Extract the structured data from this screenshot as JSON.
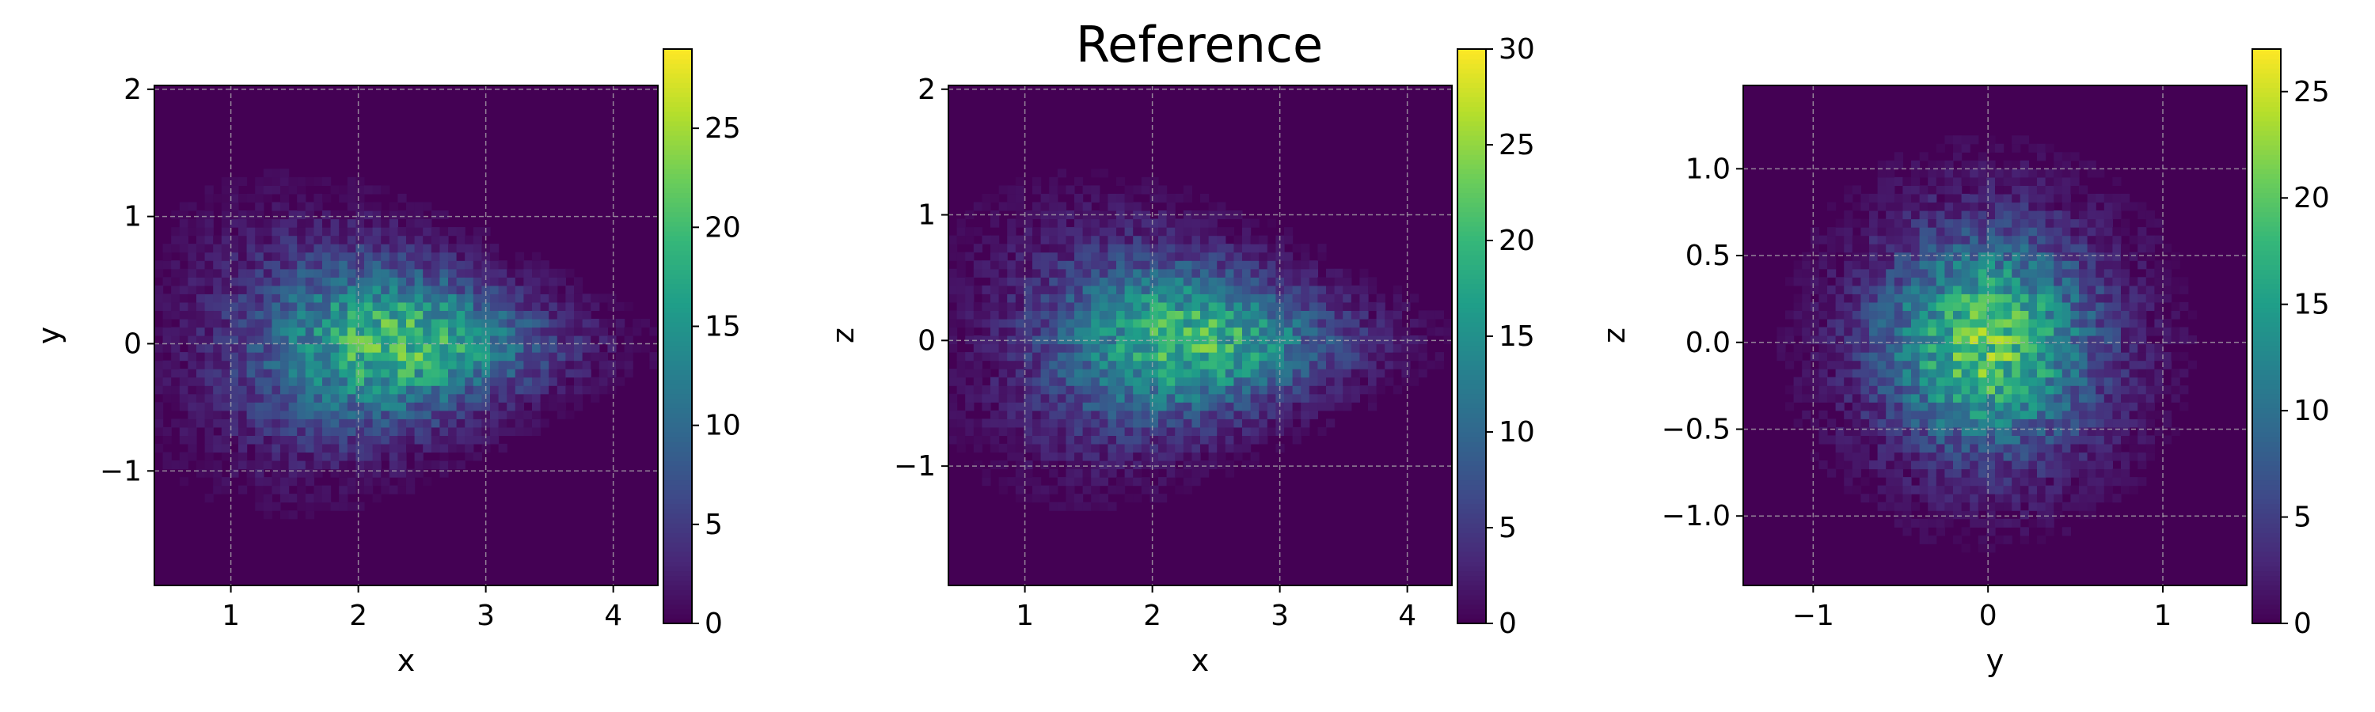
{
  "figure_title": "Reference",
  "colormap": "viridis",
  "chart_data": [
    {
      "type": "heatmap",
      "title": "",
      "xlabel": "x",
      "ylabel": "y",
      "xlim": [
        0.4,
        4.35
      ],
      "ylim": [
        -1.9,
        2.03
      ],
      "xticks": [
        1,
        2,
        3,
        4
      ],
      "xtick_labels": [
        "1",
        "2",
        "3",
        "4"
      ],
      "yticks": [
        -1,
        0,
        1,
        2
      ],
      "ytick_labels": [
        "−1",
        "0",
        "1",
        "2"
      ],
      "grid": true,
      "bins": [
        60,
        60
      ],
      "density": {
        "center": [
          2.3,
          0.0
        ],
        "spread": [
          0.75,
          0.42
        ],
        "taper": 0.28
      },
      "colorbar": {
        "min": 0,
        "max": 29,
        "ticks": [
          0,
          5,
          10,
          15,
          20,
          25
        ],
        "tick_labels": [
          "0",
          "5",
          "10",
          "15",
          "20",
          "25"
        ]
      }
    },
    {
      "type": "heatmap",
      "title": "",
      "xlabel": "x",
      "ylabel": "z",
      "xlim": [
        0.4,
        4.35
      ],
      "ylim": [
        -1.95,
        2.03
      ],
      "xticks": [
        1,
        2,
        3,
        4
      ],
      "xtick_labels": [
        "1",
        "2",
        "3",
        "4"
      ],
      "yticks": [
        -1,
        0,
        1,
        2
      ],
      "ytick_labels": [
        "−1",
        "0",
        "1",
        "2"
      ],
      "grid": true,
      "bins": [
        60,
        60
      ],
      "density": {
        "center": [
          2.3,
          0.0
        ],
        "spread": [
          0.75,
          0.42
        ],
        "taper": 0.28
      },
      "colorbar": {
        "min": 0,
        "max": 30,
        "ticks": [
          0,
          5,
          10,
          15,
          20,
          25,
          30
        ],
        "tick_labels": [
          "0",
          "5",
          "10",
          "15",
          "20",
          "25",
          "30"
        ]
      }
    },
    {
      "type": "heatmap",
      "title": "",
      "xlabel": "y",
      "ylabel": "z",
      "xlim": [
        -1.4,
        1.48
      ],
      "ylim": [
        -1.4,
        1.48
      ],
      "xticks": [
        -1,
        0,
        1
      ],
      "xtick_labels": [
        "−1",
        "0",
        "1"
      ],
      "yticks": [
        -1.0,
        -0.5,
        0.0,
        0.5,
        1.0
      ],
      "ytick_labels": [
        "−1.0",
        "−0.5",
        "0.0",
        "0.5",
        "1.0"
      ],
      "grid": true,
      "bins": [
        60,
        60
      ],
      "density": {
        "center": [
          0.0,
          0.0
        ],
        "spread": [
          0.42,
          0.42
        ],
        "taper": 0.0
      },
      "colorbar": {
        "min": 0,
        "max": 27,
        "ticks": [
          0,
          5,
          10,
          15,
          20,
          25
        ],
        "tick_labels": [
          "0",
          "5",
          "10",
          "15",
          "20",
          "25"
        ]
      }
    }
  ]
}
